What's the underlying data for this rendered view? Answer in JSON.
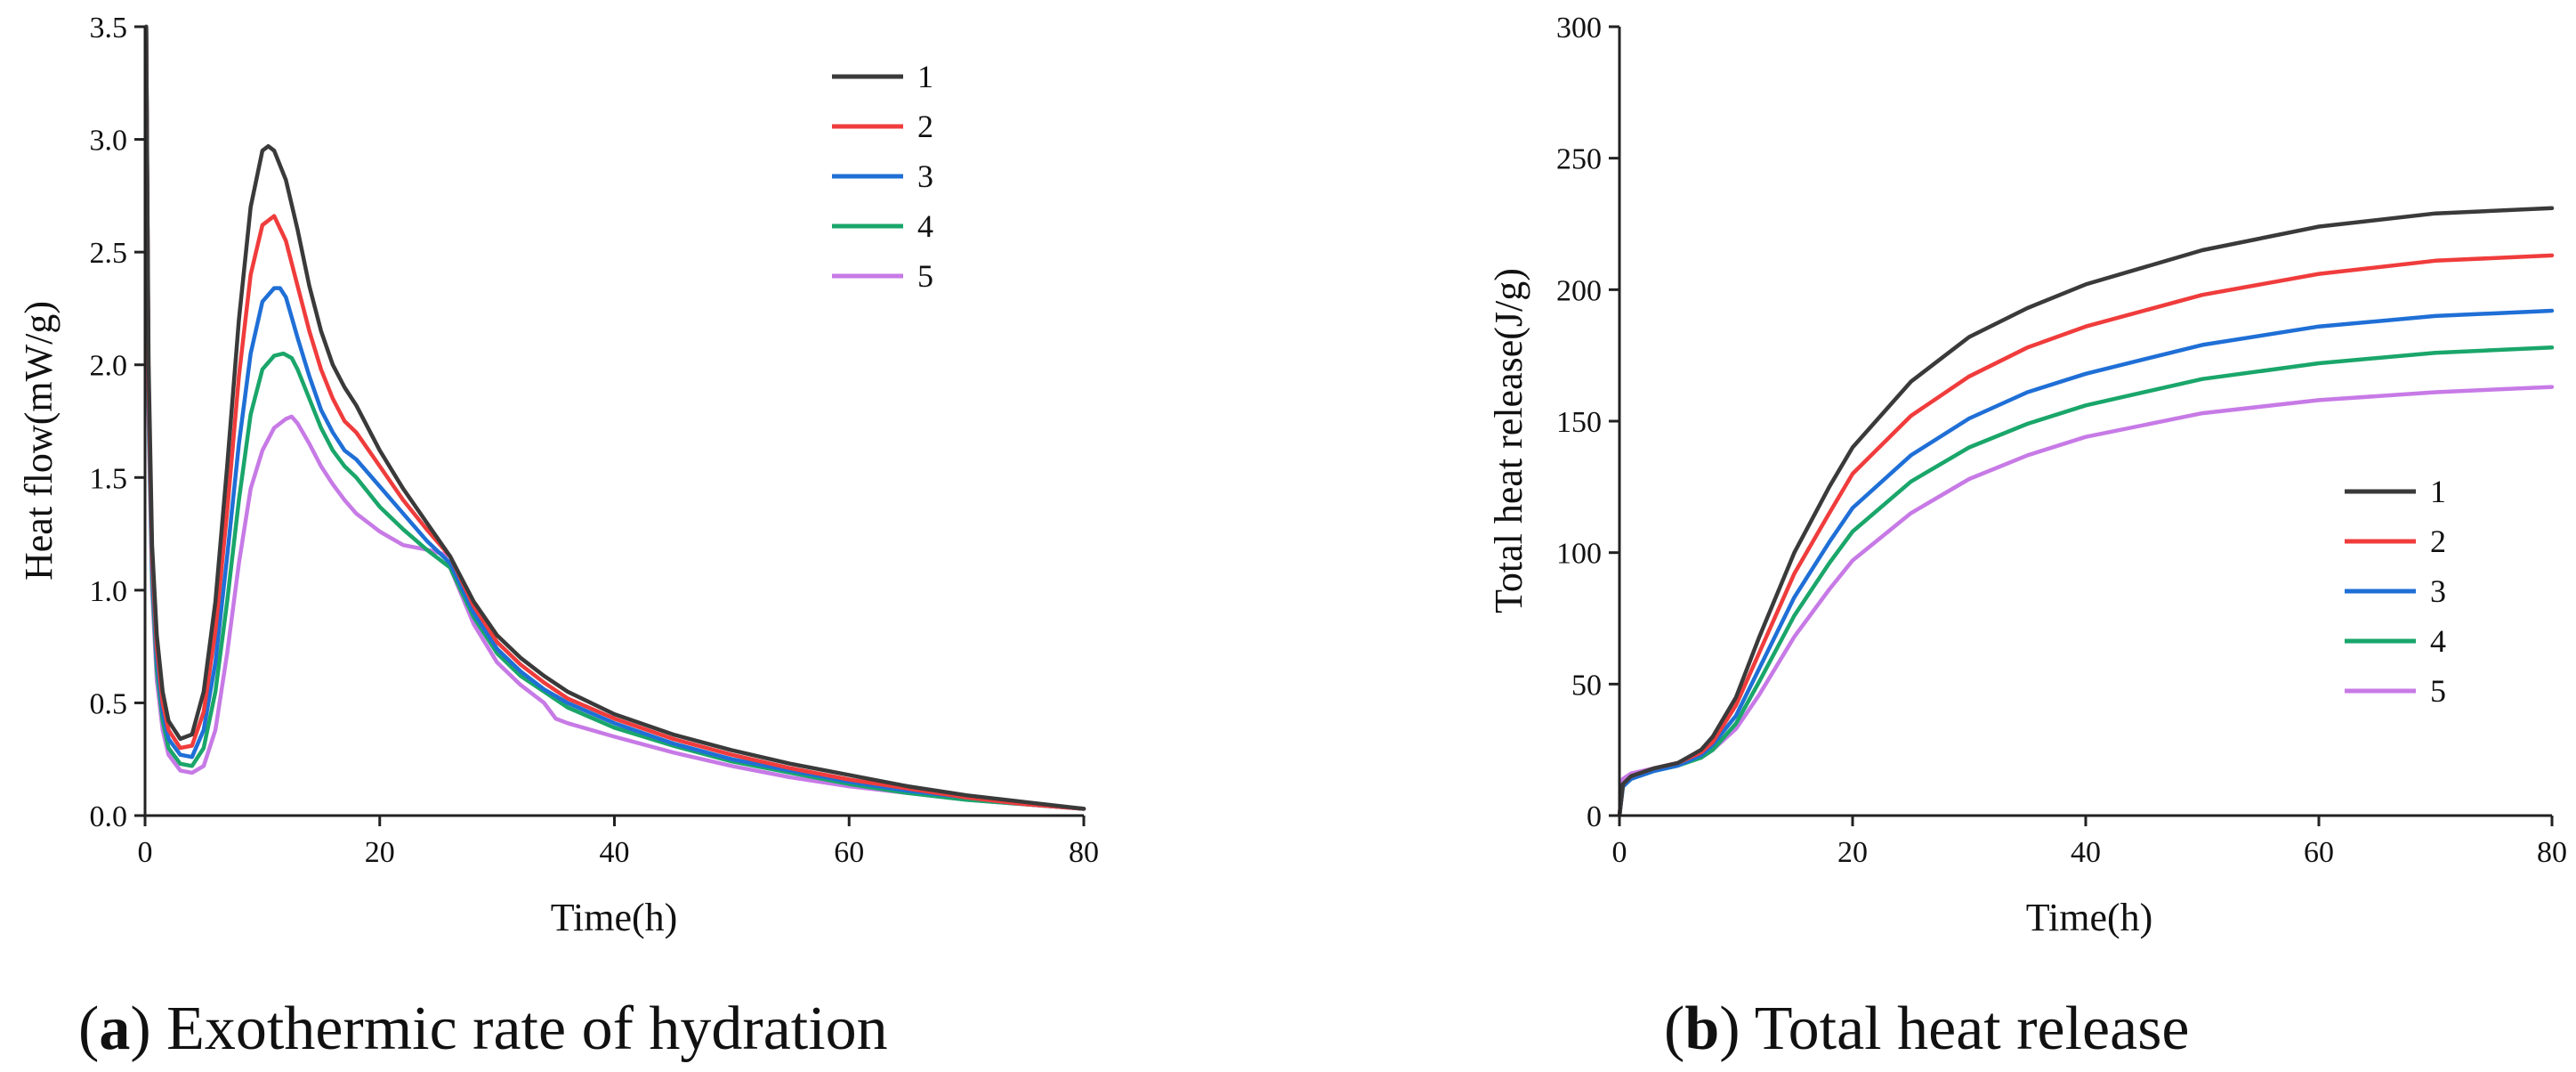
{
  "colors": {
    "s1": "#3a3a3a",
    "s2": "#f03c3c",
    "s3": "#1f6fd6",
    "s4": "#1aa66a",
    "s5": "#c77ae6"
  },
  "chart_data": [
    {
      "type": "line",
      "panel": "a",
      "caption_letter": "a",
      "caption_open": "(",
      "caption_close": ")",
      "caption_text": " Exothermic rate of hydration",
      "title": "",
      "xlabel": "Time(h)",
      "ylabel": "Heat flow(mW/g)",
      "xlim": [
        0,
        80
      ],
      "ylim": [
        0,
        3.5
      ],
      "xticks": [
        0,
        20,
        40,
        60,
        80
      ],
      "xtick_labels": [
        "0",
        "20",
        "40",
        "60",
        "80"
      ],
      "yticks": [
        0,
        0.5,
        1.0,
        1.5,
        2.0,
        2.5,
        3.0,
        3.5
      ],
      "ytick_labels": [
        "0.0",
        "0.5",
        "1.0",
        "1.5",
        "2.0",
        "2.5",
        "3.0",
        "3.5"
      ],
      "legend_position": "top-right",
      "series": [
        {
          "name": "1",
          "color_key": "s1",
          "x": [
            0.1,
            0.3,
            0.6,
            1,
            1.5,
            2,
            3,
            4,
            5,
            6,
            7,
            8,
            9,
            10,
            10.5,
            11,
            12,
            13,
            14,
            15,
            16,
            17,
            18,
            20,
            22,
            24,
            26,
            28,
            30,
            32,
            34,
            36,
            40,
            45,
            50,
            55,
            60,
            65,
            70,
            75,
            80
          ],
          "y": [
            3.5,
            2.0,
            1.2,
            0.8,
            0.55,
            0.42,
            0.34,
            0.36,
            0.55,
            0.95,
            1.55,
            2.2,
            2.7,
            2.95,
            2.97,
            2.95,
            2.82,
            2.6,
            2.35,
            2.15,
            2.0,
            1.9,
            1.82,
            1.62,
            1.45,
            1.3,
            1.15,
            0.95,
            0.8,
            0.7,
            0.62,
            0.55,
            0.45,
            0.36,
            0.29,
            0.23,
            0.18,
            0.13,
            0.09,
            0.06,
            0.03
          ]
        },
        {
          "name": "2",
          "color_key": "s2",
          "x": [
            0.1,
            0.3,
            0.6,
            1,
            1.5,
            2,
            3,
            4,
            5,
            6,
            7,
            8,
            9,
            10,
            11,
            12,
            13,
            14,
            15,
            16,
            17,
            18,
            20,
            22,
            24,
            26,
            28,
            30,
            32,
            34,
            36,
            40,
            45,
            50,
            55,
            60,
            65,
            70,
            75,
            80
          ],
          "y": [
            3.5,
            1.9,
            1.15,
            0.75,
            0.5,
            0.38,
            0.3,
            0.31,
            0.46,
            0.82,
            1.35,
            1.95,
            2.4,
            2.62,
            2.66,
            2.55,
            2.35,
            2.15,
            1.98,
            1.85,
            1.75,
            1.7,
            1.55,
            1.4,
            1.27,
            1.15,
            0.93,
            0.77,
            0.67,
            0.59,
            0.52,
            0.43,
            0.34,
            0.27,
            0.21,
            0.16,
            0.12,
            0.08,
            0.05,
            0.03
          ]
        },
        {
          "name": "3",
          "color_key": "s3",
          "x": [
            0.1,
            0.3,
            0.6,
            1,
            1.5,
            2,
            3,
            4,
            5,
            6,
            7,
            8,
            9,
            10,
            11,
            11.5,
            12,
            13,
            14,
            15,
            16,
            17,
            18,
            20,
            22,
            24,
            26,
            28,
            30,
            32,
            34,
            36,
            40,
            45,
            50,
            55,
            60,
            65,
            70,
            75,
            80
          ],
          "y": [
            3.5,
            1.85,
            1.1,
            0.7,
            0.46,
            0.34,
            0.27,
            0.26,
            0.38,
            0.68,
            1.15,
            1.65,
            2.05,
            2.28,
            2.34,
            2.34,
            2.3,
            2.12,
            1.95,
            1.8,
            1.7,
            1.62,
            1.58,
            1.46,
            1.34,
            1.22,
            1.12,
            0.9,
            0.74,
            0.64,
            0.56,
            0.5,
            0.41,
            0.32,
            0.25,
            0.2,
            0.15,
            0.11,
            0.08,
            0.05,
            0.03
          ]
        },
        {
          "name": "4",
          "color_key": "s4",
          "x": [
            0.1,
            0.3,
            0.6,
            1,
            1.5,
            2,
            3,
            4,
            5,
            6,
            7,
            8,
            9,
            10,
            11,
            11.8,
            12.5,
            13,
            14,
            15,
            16,
            17,
            18,
            20,
            22,
            24,
            26,
            28,
            30,
            32,
            34,
            36,
            40,
            45,
            50,
            55,
            60,
            65,
            70,
            75,
            80
          ],
          "y": [
            3.5,
            1.8,
            1.05,
            0.65,
            0.42,
            0.3,
            0.23,
            0.22,
            0.3,
            0.55,
            0.95,
            1.4,
            1.78,
            1.98,
            2.04,
            2.05,
            2.03,
            1.98,
            1.85,
            1.72,
            1.62,
            1.55,
            1.5,
            1.37,
            1.27,
            1.18,
            1.1,
            0.88,
            0.72,
            0.62,
            0.55,
            0.48,
            0.39,
            0.31,
            0.24,
            0.19,
            0.14,
            0.1,
            0.07,
            0.05,
            0.03
          ]
        },
        {
          "name": "5",
          "color_key": "s5",
          "x": [
            0.1,
            0.3,
            0.6,
            1,
            1.5,
            2,
            3,
            4,
            5,
            6,
            7,
            8,
            9,
            10,
            11,
            12,
            12.5,
            13,
            14,
            15,
            16,
            17,
            18,
            19,
            20,
            22,
            24,
            25.5,
            26,
            28,
            30,
            32,
            34,
            35,
            36,
            40,
            45,
            50,
            55,
            60,
            65,
            70,
            75,
            80
          ],
          "y": [
            3.5,
            1.75,
            1.0,
            0.6,
            0.38,
            0.27,
            0.2,
            0.19,
            0.22,
            0.38,
            0.72,
            1.12,
            1.45,
            1.62,
            1.72,
            1.76,
            1.77,
            1.74,
            1.65,
            1.55,
            1.47,
            1.4,
            1.34,
            1.3,
            1.26,
            1.2,
            1.18,
            1.16,
            1.1,
            0.85,
            0.68,
            0.58,
            0.5,
            0.43,
            0.41,
            0.35,
            0.28,
            0.22,
            0.17,
            0.13,
            0.1,
            0.07,
            0.05,
            0.03
          ]
        }
      ]
    },
    {
      "type": "line",
      "panel": "b",
      "caption_letter": "b",
      "caption_open": "(",
      "caption_close": ")",
      "caption_text": " Total heat release",
      "title": "",
      "xlabel": "Time(h)",
      "ylabel": "Total heat release(J/g)",
      "xlim": [
        0,
        80
      ],
      "ylim": [
        0,
        300
      ],
      "xticks": [
        0,
        20,
        40,
        60,
        80
      ],
      "xtick_labels": [
        "0",
        "20",
        "40",
        "60",
        "80"
      ],
      "yticks": [
        0,
        50,
        100,
        150,
        200,
        250,
        300
      ],
      "ytick_labels": [
        "0",
        "50",
        "100",
        "150",
        "200",
        "250",
        "300"
      ],
      "legend_position": "center-right",
      "series": [
        {
          "name": "1",
          "color_key": "s1",
          "x": [
            0,
            0.3,
            1,
            3,
            5,
            7,
            8,
            10,
            12,
            15,
            18,
            20,
            25,
            30,
            35,
            40,
            50,
            60,
            70,
            80
          ],
          "y": [
            0,
            12,
            15,
            18,
            20,
            25,
            30,
            45,
            68,
            100,
            125,
            140,
            165,
            182,
            193,
            202,
            215,
            224,
            229,
            231
          ]
        },
        {
          "name": "2",
          "color_key": "s2",
          "x": [
            0,
            0.3,
            1,
            3,
            5,
            7,
            8,
            10,
            12,
            15,
            18,
            20,
            25,
            30,
            35,
            40,
            50,
            60,
            70,
            80
          ],
          "y": [
            0,
            12,
            15,
            18,
            20,
            24,
            28,
            42,
            62,
            92,
            115,
            130,
            152,
            167,
            178,
            186,
            198,
            206,
            211,
            213
          ]
        },
        {
          "name": "3",
          "color_key": "s3",
          "x": [
            0,
            0.3,
            1,
            3,
            5,
            7,
            8,
            10,
            12,
            15,
            18,
            20,
            25,
            30,
            35,
            40,
            50,
            60,
            70,
            80
          ],
          "y": [
            0,
            11,
            14,
            17,
            19,
            23,
            27,
            38,
            56,
            83,
            104,
            117,
            137,
            151,
            161,
            168,
            179,
            186,
            190,
            192
          ]
        },
        {
          "name": "4",
          "color_key": "s4",
          "x": [
            0,
            0.3,
            1,
            3,
            5,
            7,
            8,
            10,
            12,
            15,
            18,
            20,
            25,
            30,
            35,
            40,
            50,
            60,
            70,
            80
          ],
          "y": [
            0,
            11,
            14,
            17,
            19,
            22,
            25,
            35,
            51,
            76,
            96,
            108,
            127,
            140,
            149,
            156,
            166,
            172,
            176,
            178
          ]
        },
        {
          "name": "5",
          "color_key": "s5",
          "x": [
            0,
            0.3,
            1,
            3,
            5,
            7,
            8,
            10,
            12,
            15,
            18,
            20,
            25,
            30,
            35,
            40,
            50,
            60,
            70,
            80
          ],
          "y": [
            0,
            14,
            16,
            18,
            20,
            22,
            25,
            33,
            46,
            68,
            86,
            97,
            115,
            128,
            137,
            144,
            153,
            158,
            161,
            163
          ]
        }
      ]
    }
  ]
}
